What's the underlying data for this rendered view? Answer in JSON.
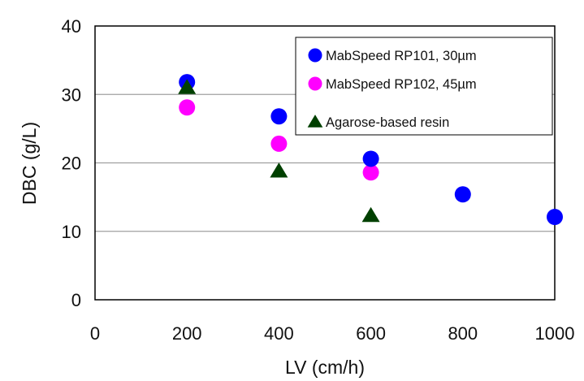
{
  "chart_data": {
    "type": "scatter",
    "xlabel": "LV (cm/h)",
    "ylabel": "DBC (g/L)",
    "xlim": [
      0,
      1000
    ],
    "ylim": [
      0,
      40
    ],
    "x_ticks": [
      0,
      200,
      400,
      600,
      800,
      1000
    ],
    "y_ticks": [
      0,
      10,
      20,
      30,
      40
    ],
    "grid": "horizontal",
    "legend_position": "top-right",
    "series": [
      {
        "name": "MabSpeed RP101, 30µm",
        "marker": "circle",
        "color": "#0000ff",
        "points": [
          {
            "x": 200,
            "y": 31.8
          },
          {
            "x": 400,
            "y": 26.8
          },
          {
            "x": 600,
            "y": 20.6
          },
          {
            "x": 800,
            "y": 15.4
          },
          {
            "x": 1000,
            "y": 12.1
          }
        ]
      },
      {
        "name": "MabSpeed RP102, 45µm",
        "marker": "circle",
        "color": "#ff00ff",
        "points": [
          {
            "x": 200,
            "y": 28.1
          },
          {
            "x": 400,
            "y": 22.8
          },
          {
            "x": 600,
            "y": 18.6
          }
        ]
      },
      {
        "name": "Agarose-based resin",
        "marker": "triangle",
        "color": "#004000",
        "points": [
          {
            "x": 200,
            "y": 31.0
          },
          {
            "x": 400,
            "y": 18.8
          },
          {
            "x": 600,
            "y": 12.3
          }
        ]
      }
    ]
  }
}
